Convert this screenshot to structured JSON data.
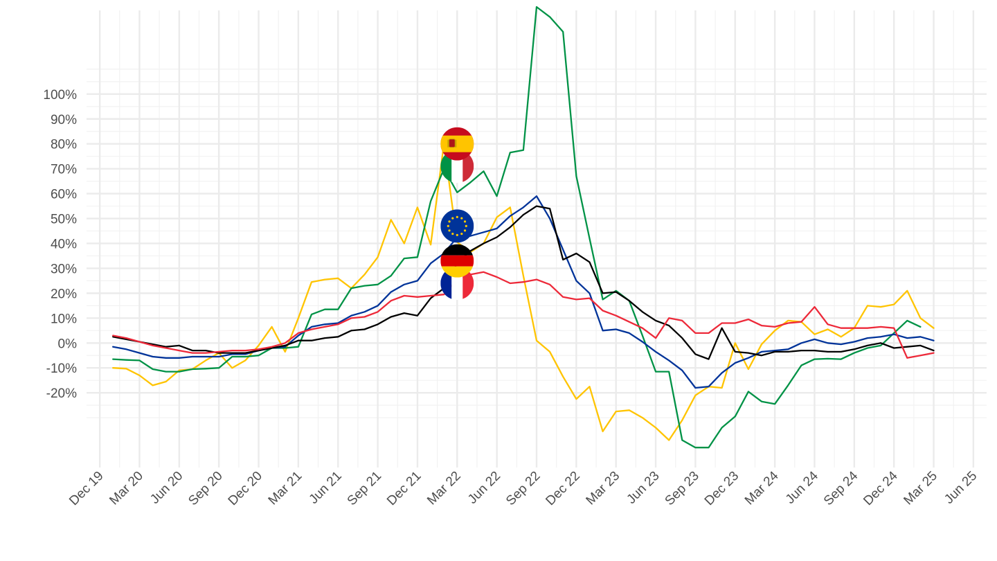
{
  "chart_data": {
    "type": "line",
    "x_ticks": [
      "Dec 19",
      "Mar 20",
      "Jun 20",
      "Sep 20",
      "Dec 20",
      "Mar 21",
      "Jun 21",
      "Sep 21",
      "Dec 21",
      "Mar 22",
      "Jun 22",
      "Sep 22",
      "Dec 22",
      "Mar 23",
      "Jun 23",
      "Sep 23",
      "Dec 23",
      "Mar 24",
      "Jun 24",
      "Sep 24",
      "Dec 24",
      "Mar 25",
      "Jun 25"
    ],
    "y_ticks": [
      "-20%",
      "-10%",
      "0%",
      "10%",
      "20%",
      "30%",
      "40%",
      "50%",
      "60%",
      "70%",
      "80%",
      "90%",
      "100%"
    ],
    "y_tick_values": [
      -20,
      -10,
      0,
      10,
      20,
      30,
      40,
      50,
      60,
      70,
      80,
      90,
      100
    ],
    "ylim": [
      -50,
      135
    ],
    "xlim": [
      "2019-11",
      "2025-07"
    ],
    "grid": true,
    "start_month": "2020-01",
    "series": [
      {
        "flag": "spain-flag-icon",
        "color": "#ffc400",
        "values": [
          -10,
          -10.3,
          -13,
          -17,
          -15.5,
          -11,
          -10.5,
          -7,
          -4,
          -10,
          -7,
          -1,
          6.5,
          -3.5,
          10,
          24.5,
          25.5,
          26,
          22,
          27.5,
          34.5,
          49.5,
          40,
          54.5,
          39.5,
          80,
          40.5,
          36.5,
          40,
          50.5,
          54.5,
          27,
          1,
          -3.5,
          -13.5,
          -22.5,
          -17.5,
          -35.5,
          -27.5,
          -27,
          -30,
          -34,
          -39,
          -31,
          -21,
          -17.5,
          -18,
          0,
          -10.5,
          -0.5,
          5,
          9,
          8.5,
          3.5,
          5.5,
          2.5,
          6,
          15,
          14.5,
          15.5,
          21,
          10,
          6
        ]
      },
      {
        "flag": "italy-flag-icon",
        "color": "#009246",
        "values": [
          -6.5,
          -6.8,
          -7,
          -10.5,
          -11.5,
          -11.5,
          -10.5,
          -10.3,
          -10,
          -5.5,
          -5.5,
          -5,
          -2,
          -2,
          -1.5,
          11.5,
          13.5,
          13.5,
          22,
          23,
          23.5,
          27,
          34,
          34.5,
          57,
          70,
          60.5,
          64.5,
          69,
          59,
          76.5,
          77.5,
          135,
          131,
          125,
          67,
          42,
          17.5,
          21,
          17,
          3,
          -11.5,
          -11.5,
          -39,
          -42,
          -42,
          -34,
          -29.5,
          -19.5,
          -23.5,
          -24.5,
          -17,
          -9,
          -6.5,
          -6.3,
          -6.5,
          -4,
          -2,
          -1,
          4,
          9,
          6.5
        ]
      },
      {
        "flag": "eu-flag-icon",
        "color": "#003399",
        "values": [
          -1.5,
          -2.5,
          -4,
          -5.5,
          -6,
          -6,
          -5.5,
          -5.5,
          -5.5,
          -4.5,
          -4.5,
          -3,
          -2,
          -1.5,
          3,
          6.5,
          7.5,
          8,
          11,
          12.5,
          15,
          20.5,
          23.5,
          25,
          32,
          36,
          42.5,
          43,
          44.5,
          46,
          51,
          54.5,
          59,
          50,
          37.5,
          25,
          20,
          5,
          5.5,
          4,
          0.5,
          -3.5,
          -7,
          -11,
          -18,
          -17.5,
          -12,
          -8,
          -6,
          -3.5,
          -3,
          -2.5,
          0,
          1.5,
          0,
          -0.5,
          0.5,
          2,
          2.5,
          3.5,
          2,
          2.5,
          1
        ]
      },
      {
        "flag": "germany-flag-icon",
        "color": "#000000",
        "values": [
          2.5,
          1.5,
          0.5,
          -0.5,
          -1.5,
          -1,
          -3,
          -3,
          -4,
          -4,
          -4,
          -3,
          -2,
          -1,
          1,
          1,
          2,
          2.5,
          5,
          5.5,
          7.5,
          10.5,
          12,
          11,
          18,
          22,
          32,
          37,
          40,
          42.5,
          46.5,
          51.5,
          55,
          54,
          33.5,
          36,
          32.5,
          20,
          20.5,
          17,
          12.5,
          9,
          7,
          2,
          -4.5,
          -6.5,
          6,
          -3.5,
          -4,
          -5,
          -3.5,
          -3.5,
          -3,
          -3,
          -3.5,
          -3.5,
          -2.5,
          -1,
          0,
          -2,
          -1.5,
          -1,
          -3
        ]
      },
      {
        "flag": "france-flag-icon",
        "color": "#ed2939",
        "values": [
          3,
          2,
          0.5,
          -1,
          -2,
          -3,
          -4,
          -4,
          -3.5,
          -3,
          -3,
          -2.5,
          -1.5,
          0,
          4,
          5.5,
          6.5,
          7.5,
          10,
          10.5,
          12.5,
          17,
          19,
          18.5,
          19,
          19.5,
          25.5,
          27.5,
          28.5,
          26.5,
          24,
          24.5,
          25.5,
          23.5,
          18.5,
          17.5,
          18,
          13,
          11,
          8.5,
          6,
          2,
          10,
          9,
          4,
          4,
          8,
          8,
          9.5,
          7,
          6.5,
          8,
          8.5,
          14.5,
          7.5,
          6,
          6,
          6,
          6.5,
          6,
          -6,
          -5,
          -4
        ]
      }
    ],
    "flag_markers": [
      {
        "flag": "spain-flag-icon",
        "month": "2022-03",
        "value": 80
      },
      {
        "flag": "italy-flag-icon",
        "month": "2022-03",
        "value": 71
      },
      {
        "flag": "eu-flag-icon",
        "month": "2022-03",
        "value": 47
      },
      {
        "flag": "germany-flag-icon",
        "month": "2022-03",
        "value": 33
      },
      {
        "flag": "france-flag-icon",
        "month": "2022-03",
        "value": 24
      }
    ]
  }
}
